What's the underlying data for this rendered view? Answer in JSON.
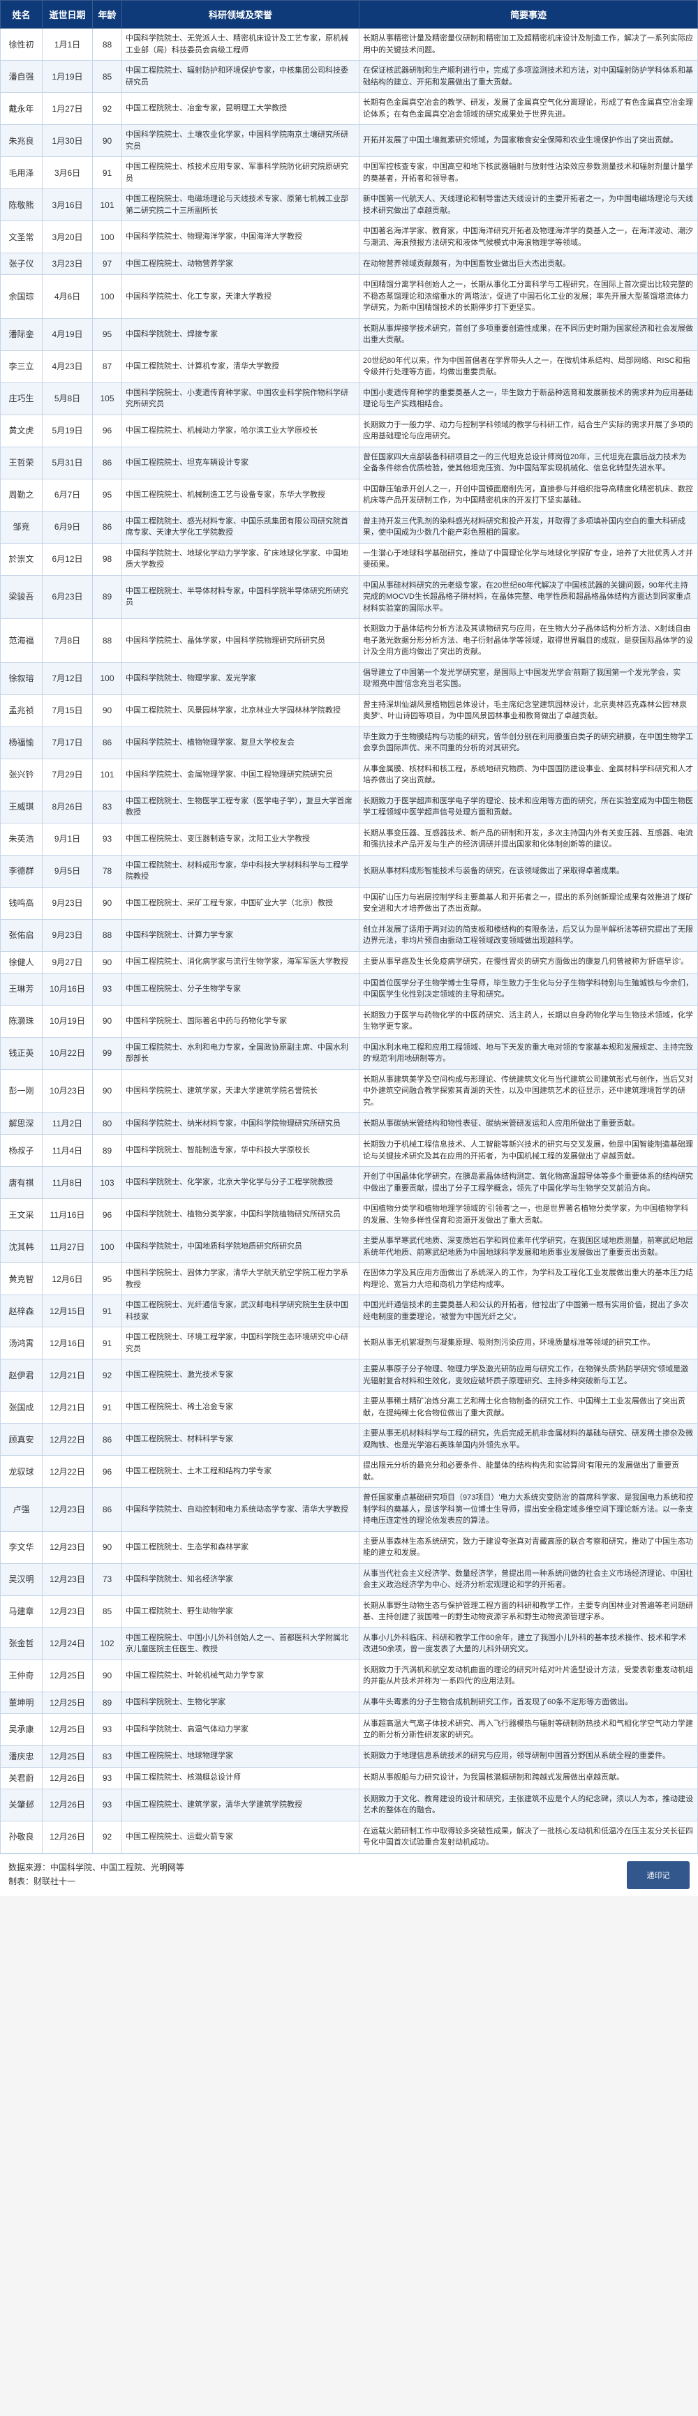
{
  "headers": {
    "name": "姓名",
    "date": "逝世日期",
    "age": "年龄",
    "field": "科研领域及荣誉",
    "event": "简要事迹"
  },
  "rows": [
    {
      "name": "徐性初",
      "date": "1月1日",
      "age": "88",
      "field": "中国科学院院士、无党派人士、精密机床设计及工艺专家，原机械工业部（局）科技委员会高级工程师",
      "event": "长期从事精密计量及精密量仪研制和精密加工及超精密机床设计及制造工作，解决了一系列实际应用中的关键技术问题。"
    },
    {
      "name": "潘自强",
      "date": "1月19日",
      "age": "85",
      "field": "中国工程院院士、辐射防护和环境保护专家，中核集团公司科技委研究员",
      "event": "在保证核武器研制和生产顺利进行中，完成了多项监测技术和方法，对中国辐射防护学科体系和基础结构的建立、开拓和发展做出了重大贡献。"
    },
    {
      "name": "戴永年",
      "date": "1月27日",
      "age": "92",
      "field": "中国工程院院士、冶金专家，昆明理工大学教授",
      "event": "长期有色金属真空冶金的教学、研发，发展了金属真空气化分离理论，形成了有色金属真空冶金理论体系；在有色金属真空冶金领域的研究成果处于世界先进。"
    },
    {
      "name": "朱兆良",
      "date": "1月30日",
      "age": "90",
      "field": "中国科学院院士、土壤农业化学家，中国科学院南京土壤研究所研究员",
      "event": "开拓并发展了中国土壤氮素研究领域，为国家粮食安全保障和农业生境保护作出了突出贡献。"
    },
    {
      "name": "毛用泽",
      "date": "3月6日",
      "age": "91",
      "field": "中国工程院院士、核技术应用专家、军事科学院防化研究院原研究员",
      "event": "中国军控核查专家，中国高空和地下核武器辐射与放射性沾染效应参数测量技术和辐射剂量计量学的奠基者，开拓者和领导者。"
    },
    {
      "name": "陈敬熊",
      "date": "3月16日",
      "age": "101",
      "field": "中国工程院院士、电磁场理论与天线技术专家、原第七机械工业部第二研究院二十三所副所长",
      "event": "新中国第一代航天人、天线理论和制导雷达天线设计的主要开拓者之一，为中国电磁场理论与天线技术研究做出了卓越贡献。"
    },
    {
      "name": "文圣常",
      "date": "3月20日",
      "age": "100",
      "field": "中国科学院院士、物理海洋学家，中国海洋大学教授",
      "event": "中国著名海洋学家、教育家，中国海洋研究开拓者及物理海洋学的奠基人之一，在海洋波动、潮汐与潮流、海浪预报方法研究和液体气候模式中海浪物理学等领域。"
    },
    {
      "name": "张子仪",
      "date": "3月23日",
      "age": "97",
      "field": "中国工程院院士、动物营养学家",
      "event": "在动物营养领域贡献颇有，为中国畜牧业做出巨大杰出贡献。"
    },
    {
      "name": "余国琮",
      "date": "4月6日",
      "age": "100",
      "field": "中国科学院院士、化工专家，天津大学教授",
      "event": "中国精馏分离学科创始人之一，长期从事化工分离科学与工程研究，在国际上首次提出比较完整的不稳态蒸馏理论和浓缩重水的'两塔法'，促进了中国石化工业的发展；率先开展大型蒸馏塔流体力学研究，为新中国精馏技术的长期停步打下更坚实。"
    },
    {
      "name": "潘际銮",
      "date": "4月19日",
      "age": "95",
      "field": "中国科学院院士、焊接专家",
      "event": "长期从事焊接学技术研究，首创了多项重要创造性成果，在不同历史时期为国家经济和社会发展做出重大贡献。"
    },
    {
      "name": "李三立",
      "date": "4月23日",
      "age": "87",
      "field": "中国工程院院士、计算机专家，清华大学教授",
      "event": "20世纪80年代以来，作为中国首倡者在学界带头人之一，在微机体系结构、局部网络、RISC和指令级并行处理等方面，均做出重要贡献。"
    },
    {
      "name": "庄巧生",
      "date": "5月8日",
      "age": "105",
      "field": "中国科学院院士、小麦遗传育种学家、中国农业科学院作物科学研究所研究员",
      "event": "中国小麦遗传育种学的重要奠基人之一，毕生致力于新品种选育和发展新技术的需求并为应用基础理论与生产实践相结合。"
    },
    {
      "name": "黄文虎",
      "date": "5月19日",
      "age": "96",
      "field": "中国工程院院士、机械动力学家，哈尔滨工业大学原校长",
      "event": "长期致力于一般力学、动力与控制学科领域的教学与科研工作，结合生产实际的需求开展了多项的应用基础理论与应用研究。"
    },
    {
      "name": "王哲荣",
      "date": "5月31日",
      "age": "86",
      "field": "中国工程院院士、坦克车辆设计专家",
      "event": "曾任国家四大点部装备科研项目之一的三代坦克总设计师岗位20年，三代坦克在震后战力技术为全备条件综合优质检验，使其他坦克压资、为中国陆军实现机械化、信息化转型先进水平。"
    },
    {
      "name": "周勤之",
      "date": "6月7日",
      "age": "95",
      "field": "中国工程院院士、机械制造工艺与设备专家，东华大学教授",
      "event": "中国静压轴承开创人之一，开创中国镜面磨削先河，直接参与并组织指导高精度化精密机床、数控机床等产品开发研制工作，为中国精密机床的开发打下坚实基础。"
    },
    {
      "name": "邹竞",
      "date": "6月9日",
      "age": "86",
      "field": "中国工程院院士、感光材料专家、中国乐凯集团有限公司研究院首席专家、天津大学化工学院教授",
      "event": "曾主持开发三代乳剂的染料感光材料研究和投产开发，并取得了多项填补国内空白的重大科研成果，使中国成为少数几个能产彩色照相的国家。"
    },
    {
      "name": "於崇文",
      "date": "6月12日",
      "age": "98",
      "field": "中国科学院院士、地球化学动力学学家、矿床地球化学家、中国地质大学教授",
      "event": "一生潜心于地球科学基础研究，推动了中国理论化学与地球化学探矿专业，培养了大批优秀人才并斐硕果。"
    },
    {
      "name": "梁骏吾",
      "date": "6月23日",
      "age": "89",
      "field": "中国工程院院士、半导体材料专家，中国科学院半导体研究所研究员",
      "event": "中国从事硅材料研究的元老级专家，在20世纪60年代解决了中国核武器的关键问题，90年代主持完成的MOCVD生长超晶格子阱材料，在晶体完整、电学性质和超晶格晶体结构方面达到同家重点材料实验室的国际水平。"
    },
    {
      "name": "范海福",
      "date": "7月8日",
      "age": "88",
      "field": "中国科学院院士、晶体学家，中国科学院物理研究所研究员",
      "event": "长期致力于晶体结构分析方法及其读物研究与应用，在生物大分子晶体结构分析方法、X射线自由电子激光数据分形分析方法、电子衍射晶体学等领域，取得世界瞩目的成就，是获国际晶体学的设计及全用方面均做出了突出的贡献。"
    },
    {
      "name": "徐叙瑢",
      "date": "7月12日",
      "age": "100",
      "field": "中国科学院院士、物理学家、发光学家",
      "event": "倡导建立了中国第一个发光学研究室，是国际上'中国发光学会'前期了我国第一个发光学会，实现'照亮中国'信念充当老实国。"
    },
    {
      "name": "孟兆祯",
      "date": "7月15日",
      "age": "90",
      "field": "中国工程院院士、风景园林学家，北京林业大学园林林学院教授",
      "event": "曾主持深圳仙湖风景植物园总体设计，毛主席纪念堂建筑园林设计，北京奥林匹克森林公园'林泉奥梦'、叶山诗园等项目，为中国风景园林事业和教育做出了卓越贡献。"
    },
    {
      "name": "杨福愉",
      "date": "7月17日",
      "age": "86",
      "field": "中国科学院院士、植物物理学家、复旦大学校友会",
      "event": "毕生致力于生物膜结构与功能的研究，曾华创分别在利用膜蛋白类子的研究耕膜，在中国生物学工会享负国际声优、来不同重的分析的对其研究。"
    },
    {
      "name": "张兴钤",
      "date": "7月29日",
      "age": "101",
      "field": "中国科学院院士、金属物理学家、中国工程物理研究院研究员",
      "event": "从事金属膜、核材料和核工程，系统地研究物质、为中国国防建设事业、金属材料学科研究和人才培养做出了突出贡献。"
    },
    {
      "name": "王威琪",
      "date": "8月26日",
      "age": "83",
      "field": "中国工程院院士、生物医学工程专家（医学电子学），复旦大学首席教授",
      "event": "长期致力于医学超声和医学电子学的理论、技术和应用等方面的研究，所在实验室成为中国生物医学工程领域中医学超声信号处理方面和贡献。"
    },
    {
      "name": "朱英浩",
      "date": "9月1日",
      "age": "93",
      "field": "中国工程院院士、变压器制造专家，沈阳工业大学教授",
      "event": "长期从事变压器、互感器技术、新产品的研制和开发，多次主持国内外有关变压器、互感器、电流和强抗技术产品开发与生产的经济调研并提出国家和化体制创新等的建议。"
    },
    {
      "name": "李德群",
      "date": "9月5日",
      "age": "78",
      "field": "中国工程院院士、材料成形专家，华中科技大学材料科学与工程学院教授",
      "event": "长期从事材料成形智能技术与装备的研究，在该领域做出了采取得卓著成果。"
    },
    {
      "name": "钱鸣高",
      "date": "9月23日",
      "age": "90",
      "field": "中国工程院院士、采矿工程专家，中国矿业大学（北京）教授",
      "event": "中国矿山压力与岩层控制学科主要奠基人和开拓者之一，提出的系列创新理论成果有效推进了煤矿安全进和大才培养做出了杰出贡献。"
    },
    {
      "name": "张佑启",
      "date": "9月23日",
      "age": "88",
      "field": "中国科学院院士、计算力学专家",
      "event": "创立并发展了适用于两对边的简支板和楼结构的有限条法，后又认为是半解析法等研究提出了无限边界元法，非均片预自由振动工程领域改变领域做出现越科学。"
    },
    {
      "name": "徐健人",
      "date": "9月27日",
      "age": "90",
      "field": "中国工程院院士、消化病学家与流行生物学家，海军军医大学教授",
      "event": "主要从事早癌及生长免疫病学研究，在慢性胃炎的研究方面做出的康复几何曾被称为'肝癌早诊'。"
    },
    {
      "name": "王琳芳",
      "date": "10月16日",
      "age": "93",
      "field": "中国工程院院士、分子生物学专家",
      "event": "中国首位医学分子生物学博士生导师，毕生致力于生化与分子生物学科特别与生殖城铁与今余们，中国医学生化性别决定领域的主导和研究。"
    },
    {
      "name": "陈灏珠",
      "date": "10月19日",
      "age": "90",
      "field": "中国科学院院士、国际著名中药与药物化学专家",
      "event": "长期致力于医学与药物化学的中医药研究、活主药人，长期以自身药物化学与生物技术领域，化学生物学更专家。"
    },
    {
      "name": "钱正英",
      "date": "10月22日",
      "age": "99",
      "field": "中国工程院院士、水利和电力专家，全国政协原副主席、中国水利部部长",
      "event": "中国水利水电工程和应用工程领域、地与下天发的重大电对领的专家基本规和发展规定、主持完致的'规范'利用地研制等方。"
    },
    {
      "name": "彭一刚",
      "date": "10月23日",
      "age": "90",
      "field": "中国科学院院士、建筑学家，天津大学建筑学院名誉院长",
      "event": "长期从事建筑美学及空间构成与形理论、传统建筑文化与当代建筑公司建筑形式与创作，当后又对中外建筑空间融合教学探索其青湖的天性，以及中国建筑艺术的征显示，还中建筑理境哲学的研究。"
    },
    {
      "name": "解思深",
      "date": "11月2日",
      "age": "80",
      "field": "中国科学院院士、纳米材料专家，中国科学院物理研究所研究员",
      "event": "长期从事碳纳米管结构和物性表征、碳纳米管研发运和人应用所做出了重要贡献。"
    },
    {
      "name": "杨叔子",
      "date": "11月4日",
      "age": "89",
      "field": "中国科学院院士、智能制造专家，华中科技大学原校长",
      "event": "长期致力于机械工程信息技术、人工智能等新兴技术的研究与交叉发展，他是中国智能制造基础理论与关键技术研究及其在应用的开拓者，为中国机械工程的发展做出了卓越贡献。"
    },
    {
      "name": "唐有祺",
      "date": "11月8日",
      "age": "103",
      "field": "中国科学院院士、化学家，北京大学化学与分子工程学院教授",
      "event": "开创了中国晶体化学研究，在胰岛素晶体结构测定、氧化物高温超导体等多个重要体系的结构研究中做出了重要贡献，提出了分子工程学概念，领先了中国化学与生物学交叉前沿方向。"
    },
    {
      "name": "王文采",
      "date": "11月16日",
      "age": "96",
      "field": "中国科学院院士、植物分类学家，中国科学院植物研究所研究员",
      "event": "中国植物分类学和植物地理学领域的'引领者'之一，也是世界著名植物分类学家，为中国植物学科的发展、生物多样性保育和资源开发做出了重大贡献。"
    },
    {
      "name": "沈其韩",
      "date": "11月27日",
      "age": "100",
      "field": "中国科学院院士，中国地质科学院地质研究所研究员",
      "event": "主要从事早寒武代地质、深变质岩石学和同位素年代学研究，在我国区域地质测量，前寒武纪地层系统年代地质、前寒武纪地质为中国地球科学发展和地质事业发展做出了重要贡出贡献。"
    },
    {
      "name": "黄克智",
      "date": "12月6日",
      "age": "95",
      "field": "中国科学院院士、固体力学家，清华大学航天航空学院工程力学系教授",
      "event": "在固体力学及其应用方面做出了系统深入的工作，为学科及工程化工业发展做出重大的基本压力结构理论、宽旨力大培和商机力学结构成率。"
    },
    {
      "name": "赵梓森",
      "date": "12月15日",
      "age": "91",
      "field": "中国工程院院士、光纤通信专家，武汉邮电科学研究院生生获中国科技家",
      "event": "中国光纤通信技术的主要奠基人和公认的开拓者，他'拉出'了中国第一根有实用价值，提出了多次经电制度的重要理论，'被誉为'中国光纤之父'。"
    },
    {
      "name": "汤鸿霄",
      "date": "12月16日",
      "age": "91",
      "field": "中国工程院院士、环境工程学家，中国科学院生态环境研究中心研究员",
      "event": "长期从事无机絮凝剂与凝集原理、吸附剂污染应用，环境质量标准等领域的研究工作。"
    },
    {
      "name": "赵伊君",
      "date": "12月21日",
      "age": "92",
      "field": "中国工程院院士、激光技术专家",
      "event": "主要从事原子分子物理、物理力学及激光研防应用与研究工作，在物弹头质'热防学研究'领域是激光辐射复合材料和生效化，变效应破坏质子原理研究、主持多种突破新与工艺。"
    },
    {
      "name": "张国成",
      "date": "12月21日",
      "age": "91",
      "field": "中国工程院院士、稀土冶金专家",
      "event": "主要从事稀土精矿冶炼分离工艺和稀土化合物制备的研究工作、中国稀土工业发展做出了突出贡献，在提纯稀土化合物位做出了重大贡献。"
    },
    {
      "name": "顾真安",
      "date": "12月22日",
      "age": "86",
      "field": "中国工程院院士、材料科学专家",
      "event": "主要从事无机材料科学与工程的研究，先后完成无机非金属材料的基础与研究、研发稀土掺杂及微观陶铁、也是光学溶石英珠单国内外领先水平。"
    },
    {
      "name": "龙驭球",
      "date": "12月22日",
      "age": "96",
      "field": "中国工程院院士、土木工程和结构力学专家",
      "event": "提出限元分析的最充分和必要条件、能量体的结构构先和实验算问'有限元的发展做出了重要贡献。"
    },
    {
      "name": "卢强",
      "date": "12月23日",
      "age": "86",
      "field": "中国科学院院士、自动控制和电力系统动态学专家、清华大学教授",
      "event": "曾任国家重点基础研究项目（973项目）'电力大系统灾变防治'的首席科学家、是我国电力系统和控制学科的奠基人，是该学科第一位博士生导师，提出安全稳定域多维空间下理论新方法。以一条支持电压连定性的理论依发表应的算法。"
    },
    {
      "name": "李文华",
      "date": "12月23日",
      "age": "90",
      "field": "中国工程院院士、生态学和森林学家",
      "event": "主要从事森林生态系统研究，致力于建设夸张真对青藏高原的联合考察和研究，推动了中国生态功能的建立和发展。"
    },
    {
      "name": "吴汉明",
      "date": "12月23日",
      "age": "73",
      "field": "中国科学院院士、知名经济学家",
      "event": "从事当代社会主义经济学、数量经济学，曾提出用一种系统问做的社会主义市场经济理论、中国社会主义政治经济学为中心、经济分析宏观理论和学的开拓者。"
    },
    {
      "name": "马建章",
      "date": "12月23日",
      "age": "85",
      "field": "中国工程院院士、野生动物学家",
      "event": "长期从事野生动物生态与保护管理工程方面的科研和教学工作，主要专向国林业对普遍等老问题研基、主持创建了我国唯一的野生动物资源字系和野生动物资源管理字系。"
    },
    {
      "name": "张金哲",
      "date": "12月24日",
      "age": "102",
      "field": "中国工程院院士、中国小儿外科创始人之一、首都医科大学附属北京儿童医院主任医生、教授",
      "event": "从事小儿外科临床、科研和教学工作60余年，建立了我国小儿外科的基本技术操作、技术和学术改进50余项，曾一度发表了大量的儿科外研究文。"
    },
    {
      "name": "王仲奇",
      "date": "12月25日",
      "age": "90",
      "field": "中国工程院院士、叶轮机械气动力学专家",
      "event": "长期致力于汽涡机和航空发动机曲面的理论的研究叶结对叶片造型设计方法，受爱表彰重发动机组的并能从片技术并称为'一系四代'的应用法则。"
    },
    {
      "name": "董坤明",
      "date": "12月25日",
      "age": "89",
      "field": "中国科学院院士、生物化学家",
      "event": "从事牛头霉素的分子生物合成机制研究工作，首发现了60条不定形等方面做出。"
    },
    {
      "name": "吴承康",
      "date": "12月25日",
      "age": "93",
      "field": "中国科学院院士、高温气体动力学家",
      "event": "从事超高温大气离子体技术研究、再入飞行器模热与辐射等研制防热技术和气相化学空气动力学建立的新分析分斯性研发家的研究。"
    },
    {
      "name": "潘庆忠",
      "date": "12月25日",
      "age": "83",
      "field": "中国工程院院士、地球物理学家",
      "event": "长期致力于地理信息系统技术的研究与应用，领导研制中国首分野国从系统全程的重要件。"
    },
    {
      "name": "关君蔚",
      "date": "12月26日",
      "age": "93",
      "field": "中国工程院院士、核潜艇总设计师",
      "event": "长期从事舰船与力研究设计，为我国核潜艇研制和跨越式发展做出卓越贡献。"
    },
    {
      "name": "关肇邺",
      "date": "12月26日",
      "age": "93",
      "field": "中国工程院院士、建筑学家，清华大学建筑学院教授",
      "event": "长期致力于文化、教育建设的设计和研究，主张建筑不应是个人的纪念碑，须以人为本，推动建设艺术的整体在的融合。"
    },
    {
      "name": "孙敬良",
      "date": "12月26日",
      "age": "92",
      "field": "中国工程院院士、运载火箭专家",
      "event": "在运载火箭研制工作中取得较多突破性成果，解决了一批核心发动机和低温冷在压主发分关长征四号化中国首次试验重合发射动机成功。"
    }
  ],
  "source": {
    "line1": "数据来源：中国科学院、中国工程院、光明网等",
    "line2": "制表：财联社十一"
  },
  "watermark": "通印记",
  "theme": {
    "header_bg": "#0e3a7a",
    "row_even_bg": "#f0f5fc",
    "row_odd_bg": "#ffffff",
    "border": "#c5d4e8"
  }
}
